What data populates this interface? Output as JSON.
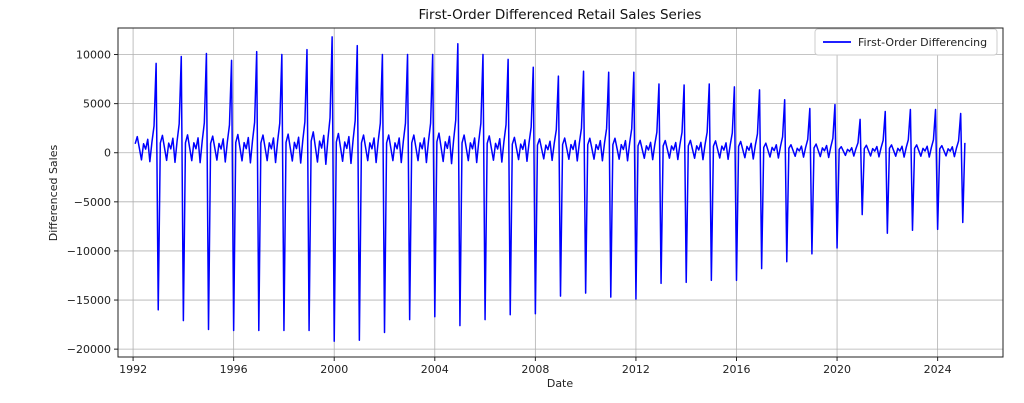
{
  "chart_data": {
    "type": "line",
    "title": "First-Order Differenced Retail Sales Series",
    "xlabel": "Date",
    "ylabel": "Differenced Sales",
    "xlim": [
      1991.4,
      2026.6
    ],
    "ylim": [
      -20800,
      12700
    ],
    "x_ticks": [
      1992,
      1996,
      2000,
      2004,
      2008,
      2012,
      2016,
      2020,
      2024
    ],
    "y_ticks": [
      -20000,
      -15000,
      -10000,
      -5000,
      0,
      5000,
      10000
    ],
    "y_tick_labels": [
      "−20000",
      "−15000",
      "−10000",
      "−5000",
      "0",
      "5000",
      "10000"
    ],
    "grid": true,
    "legend_position": "top-right",
    "series": [
      {
        "name": "First-Order Differencing",
        "color": "#0000ff",
        "start_year": 1992,
        "start_month": 2,
        "frequency": "monthly",
        "season_shape": [
          0.1,
          0.18,
          0.05,
          -0.08,
          0.1,
          0.04,
          0.15,
          -0.1,
          0.12,
          0.3,
          1.0
        ],
        "annual": [
          {
            "year": 1992,
            "peak": 9100,
            "drop": -16000
          },
          {
            "year": 1993,
            "peak": 9800,
            "drop": -17100
          },
          {
            "year": 1994,
            "peak": 10100,
            "drop": -18000
          },
          {
            "year": 1995,
            "peak": 9400,
            "drop": -18100
          },
          {
            "year": 1996,
            "peak": 10300,
            "drop": -18100
          },
          {
            "year": 1997,
            "peak": 10000,
            "drop": -18100
          },
          {
            "year": 1998,
            "peak": 10500,
            "drop": -18100
          },
          {
            "year": 1999,
            "peak": 11800,
            "drop": -19200
          },
          {
            "year": 2000,
            "peak": 10900,
            "drop": -19100
          },
          {
            "year": 2001,
            "peak": 10000,
            "drop": -18300
          },
          {
            "year": 2002,
            "peak": 10000,
            "drop": -17000
          },
          {
            "year": 2003,
            "peak": 10000,
            "drop": -16700
          },
          {
            "year": 2004,
            "peak": 11100,
            "drop": -17600
          },
          {
            "year": 2005,
            "peak": 10000,
            "drop": -17000
          },
          {
            "year": 2006,
            "peak": 9500,
            "drop": -16500
          },
          {
            "year": 2007,
            "peak": 8700,
            "drop": -16400
          },
          {
            "year": 2008,
            "peak": 7800,
            "drop": -14600
          },
          {
            "year": 2009,
            "peak": 8300,
            "drop": -14300
          },
          {
            "year": 2010,
            "peak": 8200,
            "drop": -14700
          },
          {
            "year": 2011,
            "peak": 8200,
            "drop": -14900
          },
          {
            "year": 2012,
            "peak": 7000,
            "drop": -13300
          },
          {
            "year": 2013,
            "peak": 6900,
            "drop": -13200
          },
          {
            "year": 2014,
            "peak": 7000,
            "drop": -13000
          },
          {
            "year": 2015,
            "peak": 6700,
            "drop": -13000
          },
          {
            "year": 2016,
            "peak": 6400,
            "drop": -11800
          },
          {
            "year": 2017,
            "peak": 5400,
            "drop": -11100
          },
          {
            "year": 2018,
            "peak": 4500,
            "drop": -10300
          },
          {
            "year": 2019,
            "peak": 4900,
            "drop": -9700
          },
          {
            "year": 2020,
            "peak": 3400,
            "drop": -6300
          },
          {
            "year": 2021,
            "peak": 4200,
            "drop": -8200
          },
          {
            "year": 2022,
            "peak": 4400,
            "drop": -7900
          },
          {
            "year": 2023,
            "peak": 4400,
            "drop": -7800
          },
          {
            "year": 2024,
            "peak": 4000,
            "drop": -7100
          }
        ],
        "tail_values": [
          1000
        ]
      }
    ]
  }
}
